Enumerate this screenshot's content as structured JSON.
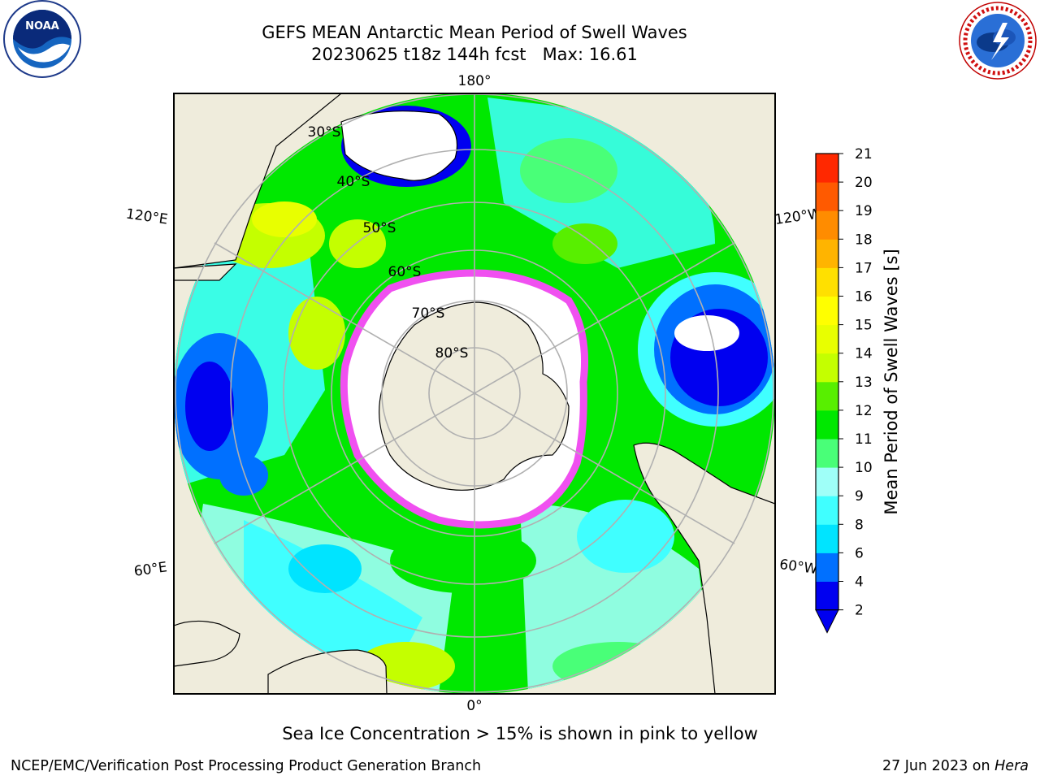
{
  "header": {
    "title_line1": "GEFS MEAN Antarctic Mean Period of Swell Waves",
    "title_line2": "20230625 t18z 144h fcst   Max: 16.61"
  },
  "logos": {
    "left": {
      "text": "NOAA",
      "ring_text": "NATIONAL OCEANIC AND ATMOSPHERIC ADMINISTRATION • U.S. DEPARTMENT OF COMMERCE"
    },
    "right": {
      "ring_text": "NATIONAL WEATHER SERVICE"
    }
  },
  "map": {
    "meridian_labels": [
      "180°",
      "120°E",
      "120°W",
      "60°E",
      "60°W",
      "0°"
    ],
    "latitude_labels": [
      "30°S",
      "40°S",
      "50°S",
      "60°S",
      "70°S",
      "80°S"
    ]
  },
  "colorbar": {
    "label": "Mean Period of Swell Waves [s]",
    "ticks": [
      2,
      4,
      6,
      8,
      9,
      10,
      11,
      12,
      13,
      14,
      15,
      16,
      17,
      18,
      19,
      20,
      21
    ],
    "colors": [
      "#0000f0",
      "#0070ff",
      "#00e4ff",
      "#40ffff",
      "#9ffff8",
      "#49ff78",
      "#00e800",
      "#58ef00",
      "#c4ff00",
      "#e8ff00",
      "#ffff00",
      "#ffe000",
      "#ffb400",
      "#ff8c00",
      "#ff5a00",
      "#ff2800"
    ]
  },
  "caption": "Sea Ice Concentration > 15% is shown in pink to yellow",
  "footer": {
    "left": "NCEP/EMC/Verification Post Processing Product Generation Branch",
    "right_prefix": "27 Jun 2023 on ",
    "right_host": "Hera"
  },
  "colors": {
    "land": "#efecdc",
    "ice": "#ffffff",
    "ice_edge": "#f050f0",
    "graticule": "#b0b0b0"
  }
}
